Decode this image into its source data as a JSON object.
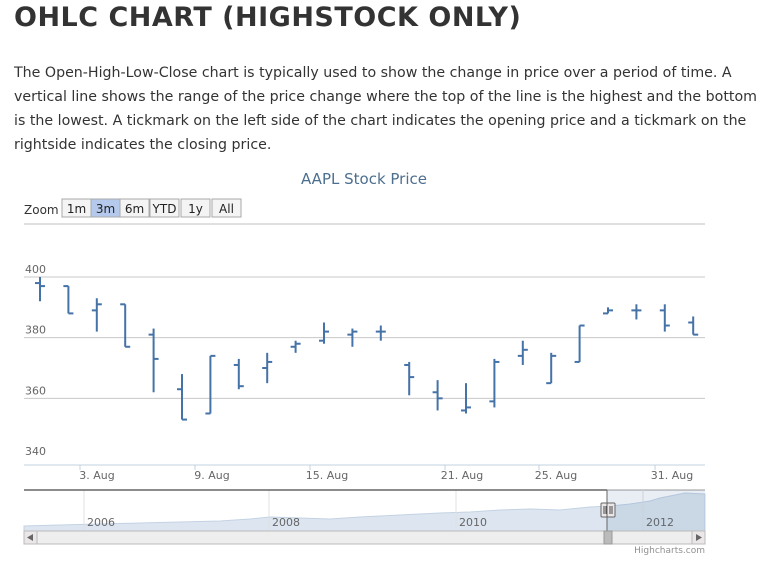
{
  "page": {
    "title": "OHLC CHART (HIGHSTOCK ONLY)",
    "description": "The Open-High-Low-Close chart is typically used to show the change in price over a period of time. A vertical line shows the range of the price change where the top of the line is the highest and the bottom is the lowest. A tickmark on the left side of the chart indicates the opening price and a tickmark on the rightside indicates the closing price."
  },
  "range_selector": {
    "label": "Zoom",
    "buttons": [
      "1m",
      "3m",
      "6m",
      "YTD",
      "1y",
      "All"
    ],
    "selected": "3m"
  },
  "navigator": {
    "year_labels": [
      "2006",
      "2008",
      "2010",
      "2012"
    ]
  },
  "credits": "Highcharts.com",
  "colors": {
    "series": "#4572a7",
    "navigator_fill": "#dde6f0",
    "button_selected": "#b5c9ec"
  },
  "chart_data": {
    "type": "ohlc",
    "title": "AAPL Stock Price",
    "ylim": [
      340,
      400
    ],
    "y_ticks": [
      340,
      360,
      380,
      400
    ],
    "x_ticks": [
      "3. Aug",
      "9. Aug",
      "15. Aug",
      "21. Aug",
      "25. Aug",
      "31. Aug"
    ],
    "grid": true,
    "series": [
      {
        "name": "AAPL",
        "data": [
          {
            "open": 398,
            "high": 400,
            "low": 392,
            "close": 397
          },
          {
            "open": 397,
            "high": 397,
            "low": 388,
            "close": 388
          },
          {
            "open": 389,
            "high": 393,
            "low": 382,
            "close": 391
          },
          {
            "open": 391,
            "high": 391,
            "low": 377,
            "close": 377
          },
          {
            "open": 381,
            "high": 383,
            "low": 362,
            "close": 373
          },
          {
            "open": 363,
            "high": 368,
            "low": 353,
            "close": 353
          },
          {
            "open": 355,
            "high": 374,
            "low": 355,
            "close": 374
          },
          {
            "open": 371,
            "high": 373,
            "low": 363,
            "close": 364
          },
          {
            "open": 370,
            "high": 375,
            "low": 365,
            "close": 372
          },
          {
            "open": 377,
            "high": 379,
            "low": 375,
            "close": 378
          },
          {
            "open": 379,
            "high": 385,
            "low": 378,
            "close": 382
          },
          {
            "open": 381,
            "high": 383,
            "low": 377,
            "close": 382
          },
          {
            "open": 382,
            "high": 384,
            "low": 379,
            "close": 382
          },
          {
            "open": 371,
            "high": 372,
            "low": 361,
            "close": 367
          },
          {
            "open": 362,
            "high": 366,
            "low": 356,
            "close": 360
          },
          {
            "open": 356,
            "high": 365,
            "low": 355,
            "close": 357
          },
          {
            "open": 359,
            "high": 373,
            "low": 357,
            "close": 372
          },
          {
            "open": 374,
            "high": 379,
            "low": 371,
            "close": 376
          },
          {
            "open": 365,
            "high": 375,
            "low": 365,
            "close": 374
          },
          {
            "open": 372,
            "high": 384,
            "low": 372,
            "close": 384
          },
          {
            "open": 388,
            "high": 390,
            "low": 388,
            "close": 389
          },
          {
            "open": 389,
            "high": 391,
            "low": 386,
            "close": 389
          },
          {
            "open": 389,
            "high": 391,
            "low": 382,
            "close": 384
          },
          {
            "open": 385,
            "high": 387,
            "low": 381,
            "close": 381
          }
        ]
      }
    ]
  }
}
